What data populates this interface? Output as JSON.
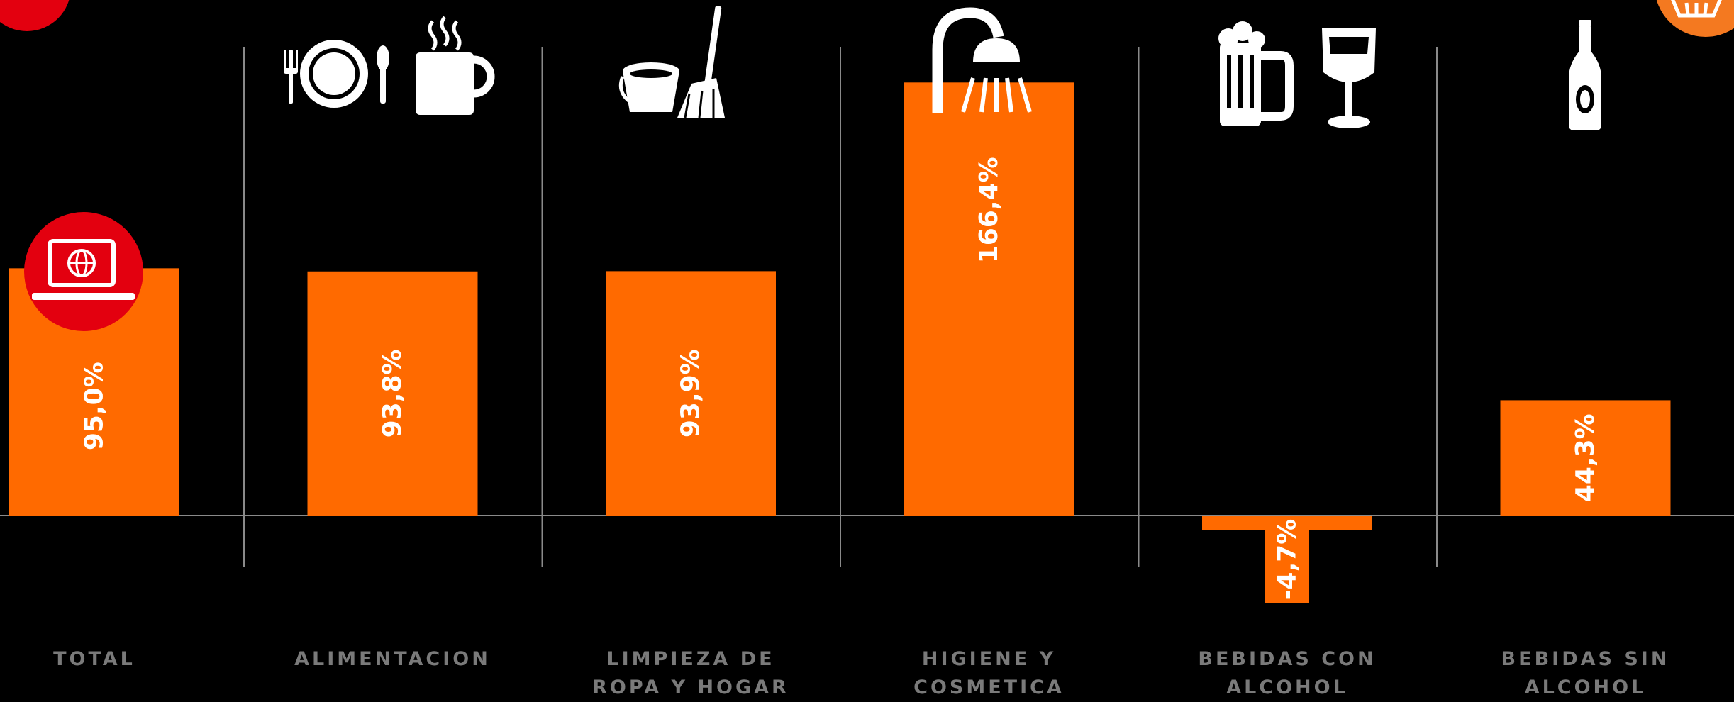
{
  "chart_data": {
    "type": "bar",
    "categories": [
      "TOTAL",
      "ALIMENTACION",
      "LIMPIEZA DE ROPA Y HOGAR",
      "HIGIENE Y COSMETICA",
      "BEBIDAS CON ALCOHOL",
      "BEBIDAS SIN ALCOHOL"
    ],
    "values": [
      95.0,
      93.8,
      93.9,
      166.4,
      -4.7,
      44.3
    ],
    "value_labels": [
      "95,0%",
      "93,8%",
      "93,9%",
      "166,4%",
      "-4,7%",
      "44,3%"
    ],
    "grid": false,
    "icons": [
      "laptop-globe-icon",
      "plate-cutlery-cup-icon",
      "bucket-broom-icon",
      "shower-icon",
      "beer-wine-icon",
      "bottle-icon"
    ],
    "colors": {
      "bar": "#FF6A00",
      "background": "#000000",
      "label": "#7a7a7a",
      "badge": "#E3000F",
      "corner_badge": "#F47920"
    }
  }
}
